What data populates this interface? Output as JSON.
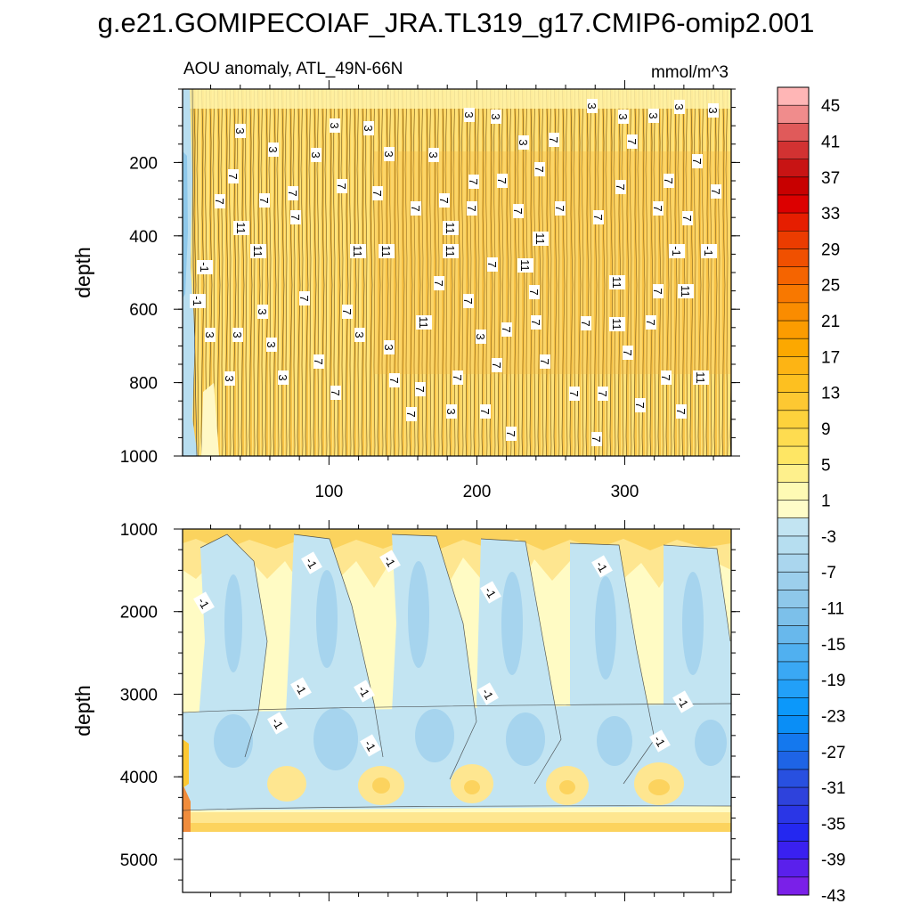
{
  "chart_data": {
    "type": "heatmap",
    "title": "g.e21.GOMIPECOIAF_JRA.TL319_g17.CMIP6-omip2.001",
    "subtitle": "AOU anomaly, ATL_49N-66N",
    "units": "mmol/m^3",
    "colorbar": {
      "levels": [
        -45,
        -43,
        -41,
        -39,
        -37,
        -35,
        -33,
        -31,
        -29,
        -27,
        -25,
        -23,
        -21,
        -19,
        -17,
        -15,
        -13,
        -11,
        -9,
        -7,
        -5,
        -3,
        -1,
        1,
        3,
        5,
        7,
        9,
        11,
        13,
        15,
        17,
        19,
        21,
        23,
        25,
        27,
        29,
        31,
        33,
        35,
        37,
        39,
        41,
        43,
        45
      ],
      "tick_labels": [
        "45",
        "41",
        "37",
        "33",
        "29",
        "25",
        "21",
        "17",
        "13",
        "9",
        "5",
        "1",
        "-3",
        "-7",
        "-11",
        "-15",
        "-19",
        "-23",
        "-27",
        "-31",
        "-35",
        "-39",
        "-43"
      ],
      "colors": [
        "#ffb6b6",
        "#f08c8c",
        "#e05a5a",
        "#d23232",
        "#c81414",
        "#c80000",
        "#dc0000",
        "#e61e00",
        "#eb3c00",
        "#f05000",
        "#f56400",
        "#f87800",
        "#fa8c00",
        "#fc9c00",
        "#fca800",
        "#fdb414",
        "#fdc020",
        "#fdc832",
        "#fdd23c",
        "#fedc50",
        "#fee664",
        "#fef08c",
        "#fefab4",
        "#fffcc8",
        "#c2e4f2",
        "#b6def0",
        "#aad6ee",
        "#9ccfec",
        "#8ec8ea",
        "#7cc0ea",
        "#68b8ec",
        "#50b0f0",
        "#3aa8f4",
        "#22a0f8",
        "#0c98fa",
        "#0a8ef6",
        "#1478ee",
        "#1e64e6",
        "#2850e0",
        "#2e42dc",
        "#2a36e6",
        "#2428f0",
        "#3a20f0",
        "#5a20ec",
        "#7a20e8"
      ]
    },
    "panels": [
      {
        "name": "upper",
        "x_ticks": [
          100,
          200,
          300
        ],
        "x_tick_labels": [
          "100",
          "200",
          "300"
        ],
        "xlim": [
          1,
          372
        ],
        "y_ticks": [
          200,
          400,
          600,
          800,
          1000
        ],
        "y_tick_labels": [
          "200",
          "400",
          "600",
          "800",
          "1000"
        ],
        "ylim": [
          0,
          1000
        ],
        "ylabel": "depth",
        "contour_labels": [
          "3",
          "3",
          "3",
          "3",
          "3",
          "3",
          "3",
          "3",
          "3",
          "3",
          "3",
          "3",
          "3",
          "3",
          "3",
          "7",
          "7",
          "7",
          "7",
          "7",
          "7",
          "7",
          "7",
          "7",
          "7",
          "7",
          "7",
          "7",
          "7",
          "7",
          "7",
          "7",
          "7",
          "7",
          "7",
          "7",
          "7",
          "7",
          "7",
          "11",
          "11",
          "11",
          "11",
          "11",
          "11",
          "11",
          "-1",
          "-1"
        ]
      },
      {
        "name": "lower",
        "x_ticks": [
          100,
          200,
          300
        ],
        "x_tick_labels": [
          "",
          "",
          ""
        ],
        "xlim": [
          1,
          372
        ],
        "y_ticks": [
          1000,
          2000,
          3000,
          4000,
          5000
        ],
        "y_tick_labels": [
          "1000",
          "2000",
          "3000",
          "4000",
          "5000"
        ],
        "ylim": [
          1000,
          5400
        ],
        "ylabel": "depth",
        "no_data_below_depth": 4650,
        "contour_labels": [
          "-1",
          "-1",
          "-1",
          "-1",
          "-1",
          "-1",
          "-1",
          "-1",
          "-1",
          "-1",
          "-1",
          "-1",
          "-1"
        ]
      }
    ]
  }
}
